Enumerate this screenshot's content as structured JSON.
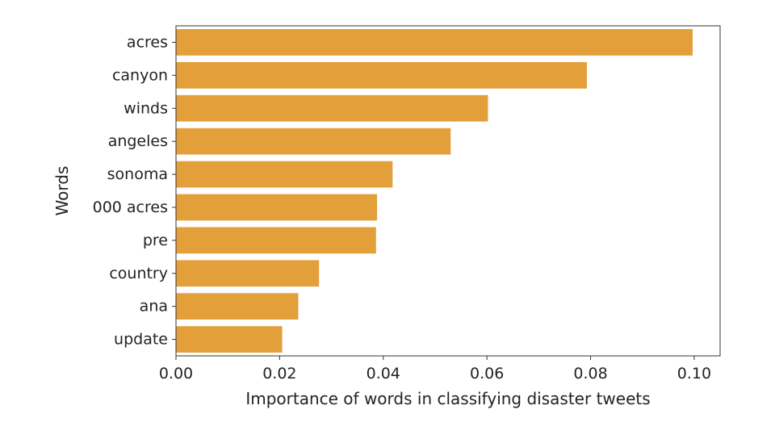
{
  "chart_data": {
    "type": "bar",
    "orientation": "horizontal",
    "categories": [
      "acres",
      "canyon",
      "winds",
      "angeles",
      "sonoma",
      "000 acres",
      "pre",
      "country",
      "ana",
      "update"
    ],
    "values": [
      0.0997,
      0.0793,
      0.0602,
      0.053,
      0.0418,
      0.0388,
      0.0386,
      0.0276,
      0.0236,
      0.0205
    ],
    "xlabel": "Importance of words in classifying disaster tweets",
    "ylabel": "Words",
    "xlim": [
      0.0,
      0.105
    ],
    "xticks": [
      "0.00",
      "0.02",
      "0.04",
      "0.06",
      "0.08",
      "0.10"
    ],
    "xtick_values": [
      0.0,
      0.02,
      0.04,
      0.06,
      0.08,
      0.1
    ],
    "grid": false,
    "bar_color": "#E39F3A"
  }
}
